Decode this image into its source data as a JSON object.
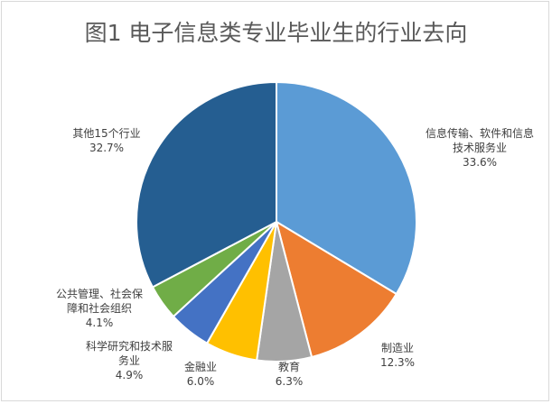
{
  "chart_data": {
    "type": "pie",
    "title": "图1 电子信息类专业毕业生的行业去向",
    "slices": [
      {
        "label_lines": [
          "信息传输、软件和信息",
          "技术服务业"
        ],
        "percent_label": "33.6%",
        "value": 33.6,
        "color": "#5b9bd5"
      },
      {
        "label_lines": [
          "制造业"
        ],
        "percent_label": "12.3%",
        "value": 12.3,
        "color": "#ed7d31"
      },
      {
        "label_lines": [
          "教育"
        ],
        "percent_label": "6.3%",
        "value": 6.3,
        "color": "#a5a5a5"
      },
      {
        "label_lines": [
          "金融业"
        ],
        "percent_label": "6.0%",
        "value": 6.0,
        "color": "#ffc000"
      },
      {
        "label_lines": [
          "科学研究和技术服",
          "务业"
        ],
        "percent_label": "4.9%",
        "value": 4.9,
        "color": "#4472c4"
      },
      {
        "label_lines": [
          "公共管理、社会保",
          "障和社会组织"
        ],
        "percent_label": "4.1%",
        "value": 4.1,
        "color": "#70ad47"
      },
      {
        "label_lines": [
          "其他15个行业"
        ],
        "percent_label": "32.7%",
        "value": 32.7,
        "color": "#255e91"
      }
    ]
  }
}
